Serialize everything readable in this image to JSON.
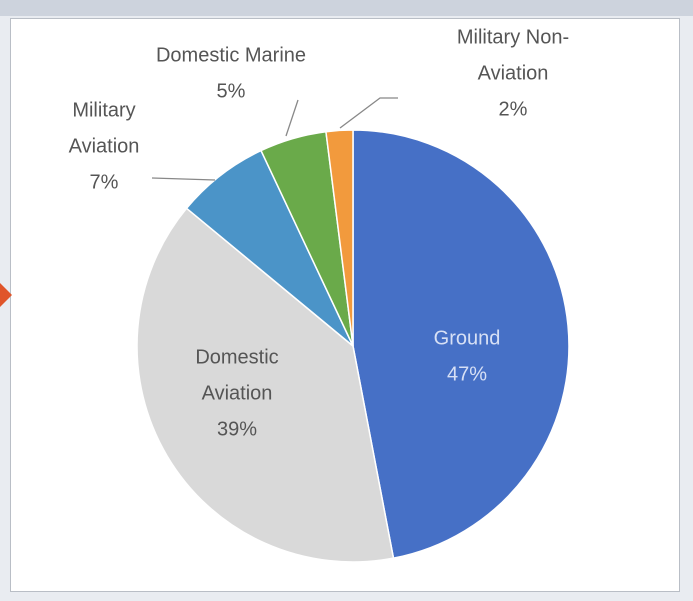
{
  "chart_data": {
    "type": "pie",
    "slices": [
      {
        "label_lines": [
          "Ground"
        ],
        "pct_text": "47%",
        "value": 47,
        "color": "#4670c6"
      },
      {
        "label_lines": [
          "Domestic",
          "Aviation"
        ],
        "pct_text": "39%",
        "value": 39,
        "color": "#d9d9d9"
      },
      {
        "label_lines": [
          "Military",
          "Aviation"
        ],
        "pct_text": "7%",
        "value": 7,
        "color": "#4b94c8"
      },
      {
        "label_lines": [
          "Domestic Marine"
        ],
        "pct_text": "5%",
        "value": 5,
        "color": "#6aaa4a"
      },
      {
        "label_lines": [
          "Military Non-",
          "Aviation"
        ],
        "pct_text": "2%",
        "value": 2,
        "color": "#f29a3d"
      }
    ],
    "legend": "none",
    "accent_arrow_color": "#e0552a"
  }
}
